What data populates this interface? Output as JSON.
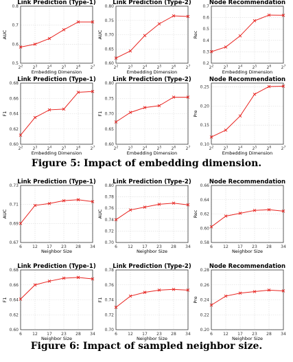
{
  "caption5": "Figure 5: Impact of embedding dimension.",
  "caption6": "Figure 6: Impact of sampled neighbor size.",
  "chart_data": [
    {
      "type": "line",
      "title": "Link Prediction (Type-1)",
      "xlabel": "Embedding Dimension",
      "ylabel": "AUC",
      "x": [
        "2",
        "2",
        "2",
        "2",
        "2",
        "2"
      ],
      "x_sup": [
        "2",
        "3",
        "4",
        "5",
        "6",
        "7"
      ],
      "yticks": [
        "0.5",
        "0.6",
        "0.7",
        "0.8"
      ],
      "ylim": [
        0.5,
        0.8
      ],
      "series": [
        {
          "values": [
            0.585,
            0.6,
            0.63,
            0.676,
            0.717,
            0.717
          ]
        }
      ]
    },
    {
      "type": "line",
      "title": "Link Prediction (Type-2)",
      "xlabel": "Embedding Dimension",
      "ylabel": "AUC",
      "x": [
        "2",
        "2",
        "2",
        "2",
        "2",
        "2"
      ],
      "x_sup": [
        "2",
        "3",
        "4",
        "5",
        "6",
        "7"
      ],
      "yticks": [
        "0.60",
        "0.65",
        "0.70",
        "0.75",
        "0.80"
      ],
      "ylim": [
        0.6,
        0.8
      ],
      "series": [
        {
          "values": [
            0.618,
            0.643,
            0.697,
            0.738,
            0.766,
            0.764
          ]
        }
      ]
    },
    {
      "type": "line",
      "title": "Node Recommendation",
      "xlabel": "Embedding Dimension",
      "ylabel": "Rec",
      "x": [
        "2",
        "2",
        "2",
        "2",
        "2",
        "2"
      ],
      "x_sup": [
        "2",
        "3",
        "4",
        "5",
        "6",
        "7"
      ],
      "yticks": [
        "0.2",
        "0.3",
        "0.4",
        "0.5",
        "0.6",
        "0.7"
      ],
      "ylim": [
        0.2,
        0.7
      ],
      "series": [
        {
          "values": [
            0.301,
            0.342,
            0.44,
            0.572,
            0.622,
            0.62
          ]
        }
      ]
    },
    {
      "type": "line",
      "title": "Link Prediction (Type-1)",
      "xlabel": "Embedding Dimension",
      "ylabel": "F1",
      "x": [
        "2",
        "2",
        "2",
        "2",
        "2",
        "2"
      ],
      "x_sup": [
        "2",
        "3",
        "4",
        "5",
        "6",
        "7"
      ],
      "yticks": [
        "0.60",
        "0.62",
        "0.64",
        "0.66",
        "0.68"
      ],
      "ylim": [
        0.6,
        0.68
      ],
      "series": [
        {
          "values": [
            0.612,
            0.635,
            0.645,
            0.646,
            0.668,
            0.669
          ]
        }
      ]
    },
    {
      "type": "line",
      "title": "Link Prediction (Type-2)",
      "xlabel": "Embedding Dimension",
      "ylabel": "F1",
      "x": [
        "2",
        "2",
        "2",
        "2",
        "2",
        "2"
      ],
      "x_sup": [
        "2",
        "3",
        "4",
        "5",
        "6",
        "7"
      ],
      "yticks": [
        "0.60",
        "0.65",
        "0.70",
        "0.75",
        "0.80"
      ],
      "ylim": [
        0.6,
        0.8
      ],
      "series": [
        {
          "values": [
            0.673,
            0.704,
            0.72,
            0.726,
            0.754,
            0.754
          ]
        }
      ]
    },
    {
      "type": "line",
      "title": "Node Recommendation",
      "xlabel": "Embedding Dimension",
      "ylabel": "Pre",
      "x": [
        "2",
        "2",
        "2",
        "2",
        "2",
        "2"
      ],
      "x_sup": [
        "2",
        "3",
        "4",
        "5",
        "6",
        "7"
      ],
      "yticks": [
        "0.10",
        "0.15",
        "0.20",
        "0.25"
      ],
      "ylim": [
        0.1,
        0.26
      ],
      "series": [
        {
          "values": [
            0.119,
            0.137,
            0.174,
            0.231,
            0.251,
            0.252
          ]
        }
      ]
    },
    {
      "type": "line",
      "title": "Link Prediction (Type-1)",
      "xlabel": "Neighbor Size",
      "ylabel": "AUC",
      "x": [
        "6",
        "12",
        "17",
        "23",
        "28",
        "34"
      ],
      "yticks": [
        "0.67",
        "0.69",
        "0.71",
        "0.73"
      ],
      "ylim": [
        0.67,
        0.73
      ],
      "series": [
        {
          "values": [
            0.69,
            0.709,
            0.711,
            0.714,
            0.715,
            0.713
          ]
        }
      ]
    },
    {
      "type": "line",
      "title": "Link Prediction (Type-2)",
      "xlabel": "Neighbor Size",
      "ylabel": "AUC",
      "x": [
        "6",
        "12",
        "17",
        "23",
        "28",
        "34"
      ],
      "yticks": [
        "0.70",
        "0.72",
        "0.74",
        "0.76",
        "0.78",
        "0.80"
      ],
      "ylim": [
        0.7,
        0.8
      ],
      "series": [
        {
          "values": [
            0.74,
            0.757,
            0.762,
            0.767,
            0.769,
            0.766
          ]
        }
      ]
    },
    {
      "type": "line",
      "title": "Node Recommendation",
      "xlabel": "Neighbor Size",
      "ylabel": "Rec",
      "x": [
        "6",
        "12",
        "17",
        "23",
        "28",
        "34"
      ],
      "yticks": [
        "0.58",
        "0.60",
        "0.62",
        "0.64",
        "0.66"
      ],
      "ylim": [
        0.58,
        0.66
      ],
      "series": [
        {
          "values": [
            0.602,
            0.617,
            0.621,
            0.625,
            0.626,
            0.624
          ]
        }
      ]
    },
    {
      "type": "line",
      "title": "Link Prediction (Type-1)",
      "xlabel": "Neighbor Size",
      "ylabel": "F1",
      "x": [
        "6",
        "12",
        "17",
        "23",
        "28",
        "34"
      ],
      "yticks": [
        "0.60",
        "0.62",
        "0.64",
        "0.66",
        "0.68"
      ],
      "ylim": [
        0.6,
        0.68
      ],
      "series": [
        {
          "values": [
            0.641,
            0.66,
            0.665,
            0.669,
            0.67,
            0.668
          ]
        }
      ]
    },
    {
      "type": "line",
      "title": "Link Prediction (Type-2)",
      "xlabel": "Neighbor Size",
      "ylabel": "F1",
      "x": [
        "6",
        "12",
        "17",
        "23",
        "28",
        "34"
      ],
      "yticks": [
        "0.70",
        "0.72",
        "0.74",
        "0.76",
        "0.78"
      ],
      "ylim": [
        0.7,
        0.78
      ],
      "series": [
        {
          "values": [
            0.73,
            0.745,
            0.75,
            0.753,
            0.754,
            0.753
          ]
        }
      ]
    },
    {
      "type": "line",
      "title": "Node Recommendation",
      "xlabel": "Neighbor Size",
      "ylabel": "Pre",
      "x": [
        "6",
        "12",
        "17",
        "23",
        "28",
        "34"
      ],
      "yticks": [
        "0.20",
        "0.22",
        "0.24",
        "0.26",
        "0.28"
      ],
      "ylim": [
        0.2,
        0.28
      ],
      "series": [
        {
          "values": [
            0.233,
            0.245,
            0.249,
            0.251,
            0.253,
            0.252
          ]
        }
      ]
    }
  ]
}
